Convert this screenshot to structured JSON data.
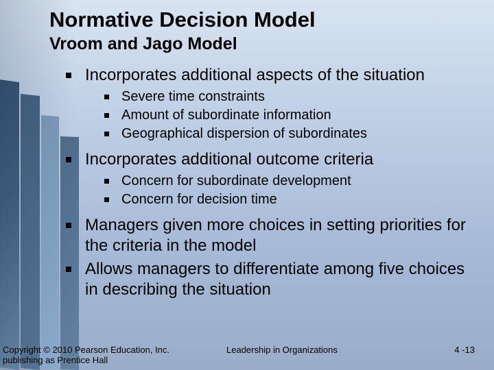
{
  "title": {
    "main": "Normative Decision Model",
    "sub": "Vroom and Jago Model"
  },
  "bullets": [
    {
      "text": "Incorporates additional aspects of the situation",
      "sub": [
        "Severe time constraints",
        "Amount of subordinate information",
        "Geographical dispersion of subordinates"
      ]
    },
    {
      "text": "Incorporates additional outcome criteria",
      "sub": [
        "Concern for subordinate development",
        "Concern for decision time"
      ]
    },
    {
      "text": "Managers given more choices in setting priorities for the criteria in the model",
      "sub": []
    },
    {
      "text": "Allows managers to differentiate among five choices in describing the situation",
      "sub": []
    }
  ],
  "footer": {
    "copyright": "Copyright © 2010 Pearson Education, Inc. publishing as Prentice Hall",
    "center": "Leadership in Organizations",
    "slide": "4 -13"
  },
  "style": {
    "title_fontsize": 31,
    "subtitle_fontsize": 25,
    "bullet_l1_fontsize": 24,
    "bullet_l2_fontsize": 20,
    "footer_fontsize": 13,
    "text_color": "#000000",
    "bg_gradient_top": "#d8e4f0",
    "bg_gradient_bottom": "#9aadc8",
    "building_color_dark": "#1a3a5a",
    "building_color_light": "#8aaacc"
  }
}
